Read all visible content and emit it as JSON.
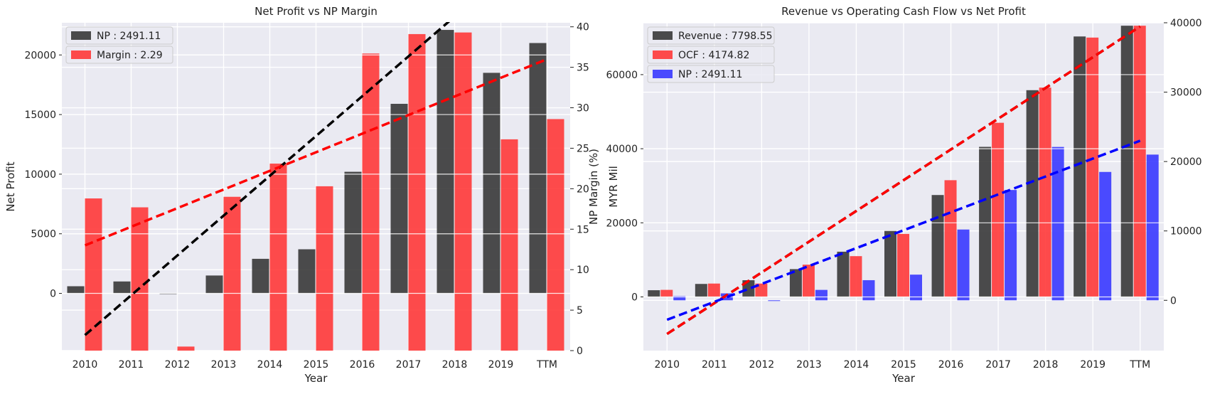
{
  "chart_data": [
    {
      "type": "bar",
      "title": "Net Profit vs NP Margin",
      "xlabel": "Year",
      "ylabel": "Net Profit",
      "ylabel_right": "NP Margin (%)",
      "categories": [
        "2010",
        "2011",
        "2012",
        "2013",
        "2014",
        "2015",
        "2016",
        "2017",
        "2018",
        "2019",
        "TTM"
      ],
      "ylim": [
        -4800,
        22700
      ],
      "ylim_right": [
        0,
        40.5
      ],
      "yticks": [
        0,
        5000,
        10000,
        15000,
        20000
      ],
      "yticks_right": [
        0,
        5,
        10,
        15,
        20,
        25,
        30,
        35,
        40
      ],
      "legend_position": "top-left",
      "series": [
        {
          "name": "NP : 2491.11",
          "axis": "left",
          "color": "#333333",
          "values": [
            600,
            1000,
            -50,
            1500,
            2900,
            3700,
            10200,
            15900,
            22100,
            18500,
            21000
          ]
        },
        {
          "name": "Margin : 2.29",
          "axis": "right",
          "color": "#ff3333",
          "values": [
            18.8,
            17.7,
            0.5,
            19.0,
            23.1,
            20.3,
            36.7,
            39.1,
            39.3,
            26.1,
            28.6
          ]
        }
      ],
      "trendlines": [
        {
          "axis": "left",
          "color": "#000000",
          "values": [
            -3500,
            -160,
            3180,
            6520,
            9860,
            13200,
            16540,
            19880,
            23220,
            26560,
            29900
          ]
        },
        {
          "axis": "right",
          "color": "#ff0000",
          "values": [
            13.0,
            15.3,
            17.6,
            19.9,
            22.2,
            24.5,
            26.8,
            29.1,
            31.4,
            33.7,
            36.0
          ]
        }
      ],
      "grid": true
    },
    {
      "type": "bar",
      "title": "Revenue vs Operating Cash Flow vs Net Profit",
      "xlabel": "Year",
      "ylabel": "MYR Mil",
      "ylabel_right": "",
      "categories": [
        "2010",
        "2011",
        "2012",
        "2013",
        "2014",
        "2015",
        "2016",
        "2017",
        "2018",
        "2019",
        "TTM"
      ],
      "ylim": [
        -14500,
        74000
      ],
      "ylim_right": [
        -7250,
        40000
      ],
      "yticks": [
        0,
        20000,
        40000,
        60000
      ],
      "yticks_right": [
        0,
        10000,
        20000,
        30000,
        40000
      ],
      "legend_position": "top-left",
      "series": [
        {
          "name": "Revenue : 7798.55",
          "axis": "left",
          "color": "#333333",
          "values": [
            1800,
            3500,
            4500,
            7500,
            12200,
            17800,
            27500,
            40500,
            55800,
            70300,
            73200
          ]
        },
        {
          "name": "OCF : 4174.82",
          "axis": "left",
          "color": "#ff3333",
          "values": [
            1900,
            3600,
            3600,
            8700,
            11000,
            17000,
            31500,
            47000,
            56500,
            70000,
            73200
          ]
        },
        {
          "name": "NP : 2491.11",
          "axis": "right",
          "color": "#3333ff",
          "values": [
            600,
            1000,
            -50,
            1500,
            2900,
            3700,
            10200,
            15900,
            22100,
            18500,
            21000
          ]
        }
      ],
      "trendlines": [
        {
          "axis": "left",
          "color": "#000000",
          "values": [
            -10000,
            -1700,
            6600,
            14900,
            23200,
            31500,
            39800,
            48100,
            56400,
            64700,
            73000
          ]
        },
        {
          "axis": "left",
          "color": "#ff0000",
          "values": [
            -10000,
            -1700,
            6600,
            14900,
            23200,
            31500,
            39800,
            48100,
            56400,
            64700,
            73000
          ]
        },
        {
          "axis": "right",
          "color": "#0000ff",
          "values": [
            -2800,
            -220,
            2360,
            4940,
            7520,
            10100,
            12680,
            15260,
            17840,
            20420,
            23000
          ]
        }
      ],
      "grid": true
    }
  ]
}
